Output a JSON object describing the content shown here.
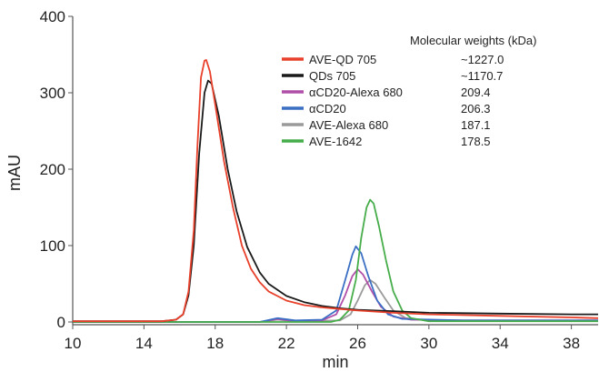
{
  "chart_data": {
    "type": "line",
    "xlabel": "min",
    "ylabel": "mAU",
    "xlim": [
      10,
      39.5
    ],
    "ylim": [
      0,
      400
    ],
    "xticks": [
      10,
      14,
      18,
      22,
      26,
      30,
      34,
      38
    ],
    "yticks": [
      0,
      100,
      200,
      300,
      400
    ],
    "grid": false,
    "legend_position": "top-right",
    "legend_header": "Molecular weights (kDa)",
    "series": [
      {
        "name": "AVE-QD 705",
        "mw": "~1227.0",
        "color": "#e8402a",
        "points": [
          [
            10,
            1
          ],
          [
            15,
            1
          ],
          [
            15.8,
            3
          ],
          [
            16.2,
            10
          ],
          [
            16.5,
            40
          ],
          [
            16.8,
            120
          ],
          [
            17.0,
            230
          ],
          [
            17.2,
            320
          ],
          [
            17.4,
            342
          ],
          [
            17.5,
            343
          ],
          [
            17.7,
            328
          ],
          [
            18.0,
            285
          ],
          [
            18.5,
            210
          ],
          [
            19.0,
            150
          ],
          [
            19.5,
            100
          ],
          [
            20.0,
            70
          ],
          [
            20.5,
            52
          ],
          [
            21.0,
            40
          ],
          [
            22.0,
            28
          ],
          [
            23.0,
            22
          ],
          [
            24.0,
            19
          ],
          [
            25.0,
            17
          ],
          [
            26.0,
            15
          ],
          [
            28.0,
            12
          ],
          [
            30.0,
            10
          ],
          [
            34.0,
            8
          ],
          [
            38.0,
            6
          ],
          [
            39.5,
            5
          ]
        ]
      },
      {
        "name": "QDs 705",
        "mw": "~1170.7",
        "color": "#1a1a1a",
        "points": [
          [
            10,
            1
          ],
          [
            15,
            1
          ],
          [
            15.8,
            3
          ],
          [
            16.2,
            10
          ],
          [
            16.5,
            35
          ],
          [
            16.8,
            100
          ],
          [
            17.1,
            220
          ],
          [
            17.4,
            300
          ],
          [
            17.6,
            316
          ],
          [
            17.8,
            312
          ],
          [
            18.2,
            270
          ],
          [
            18.7,
            200
          ],
          [
            19.2,
            145
          ],
          [
            19.8,
            98
          ],
          [
            20.5,
            65
          ],
          [
            21.0,
            50
          ],
          [
            22.0,
            34
          ],
          [
            23.0,
            26
          ],
          [
            24.0,
            21
          ],
          [
            25.0,
            18
          ],
          [
            26.0,
            16
          ],
          [
            28.0,
            14
          ],
          [
            30.0,
            12
          ],
          [
            34.0,
            11
          ],
          [
            38.0,
            10
          ],
          [
            39.5,
            10
          ]
        ]
      },
      {
        "name": "αCD20-Alexa 680",
        "mw": "209.4",
        "color": "#b04fa8",
        "points": [
          [
            10,
            0
          ],
          [
            20.5,
            0
          ],
          [
            21.5,
            4
          ],
          [
            22.5,
            1
          ],
          [
            24.0,
            2
          ],
          [
            24.8,
            10
          ],
          [
            25.3,
            35
          ],
          [
            25.7,
            60
          ],
          [
            26.0,
            69
          ],
          [
            26.3,
            62
          ],
          [
            26.8,
            40
          ],
          [
            27.3,
            20
          ],
          [
            28.0,
            7
          ],
          [
            29.0,
            3
          ],
          [
            32.0,
            2
          ],
          [
            39.5,
            2
          ]
        ]
      },
      {
        "name": "αCD20",
        "mw": "206.3",
        "color": "#3b6fc4",
        "points": [
          [
            10,
            0
          ],
          [
            20.5,
            0
          ],
          [
            21.5,
            5
          ],
          [
            22.5,
            2
          ],
          [
            24.0,
            3
          ],
          [
            24.8,
            15
          ],
          [
            25.3,
            55
          ],
          [
            25.7,
            88
          ],
          [
            25.9,
            99
          ],
          [
            26.2,
            90
          ],
          [
            26.6,
            60
          ],
          [
            27.1,
            28
          ],
          [
            27.7,
            10
          ],
          [
            28.5,
            4
          ],
          [
            32.0,
            2
          ],
          [
            39.5,
            2
          ]
        ]
      },
      {
        "name": "AVE-Alexa 680",
        "mw": "187.1",
        "color": "#9a9a9a",
        "points": [
          [
            10,
            0
          ],
          [
            20.5,
            0
          ],
          [
            21.5,
            3
          ],
          [
            22.5,
            1
          ],
          [
            25.0,
            2
          ],
          [
            25.6,
            10
          ],
          [
            26.0,
            28
          ],
          [
            26.4,
            48
          ],
          [
            26.7,
            55
          ],
          [
            27.0,
            50
          ],
          [
            27.5,
            32
          ],
          [
            28.0,
            15
          ],
          [
            28.7,
            5
          ],
          [
            30.0,
            2
          ],
          [
            39.5,
            2
          ]
        ]
      },
      {
        "name": "AVE-1642",
        "mw": "178.5",
        "color": "#46ad4a",
        "points": [
          [
            10,
            0
          ],
          [
            24.5,
            0
          ],
          [
            25.0,
            3
          ],
          [
            25.5,
            15
          ],
          [
            25.9,
            55
          ],
          [
            26.2,
            110
          ],
          [
            26.5,
            150
          ],
          [
            26.7,
            160
          ],
          [
            26.9,
            155
          ],
          [
            27.2,
            125
          ],
          [
            27.6,
            80
          ],
          [
            28.0,
            40
          ],
          [
            28.5,
            15
          ],
          [
            29.0,
            5
          ],
          [
            30.0,
            1
          ],
          [
            39.5,
            1
          ]
        ]
      }
    ]
  }
}
